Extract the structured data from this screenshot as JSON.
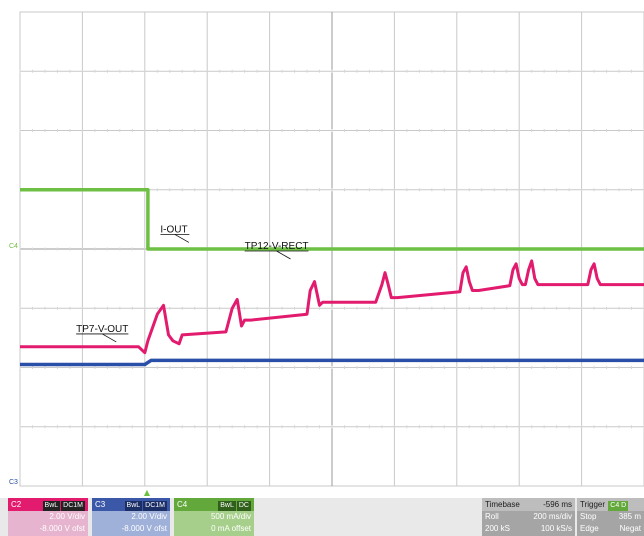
{
  "chart_data": {
    "type": "line",
    "title": "",
    "x_divisions": 10,
    "y_divisions": 8,
    "grid": true,
    "colors": {
      "background": "#ffffff",
      "grid": "#c9c9c9",
      "grid_center": "#9a9a9a",
      "ch2": "#e21b6f",
      "ch3": "#2a4fa8",
      "ch4": "#6dc043"
    },
    "series": [
      {
        "name": "I-OUT",
        "channel": "C4",
        "color": "#6dc043",
        "x": [
          0,
          2.05,
          2.05,
          10
        ],
        "y": [
          1.0,
          1.0,
          0.0,
          0.0
        ]
      },
      {
        "name": "TP12-V-RECT",
        "channel": "C2",
        "color": "#e21b6f",
        "x": [
          0,
          1.9,
          2.0,
          2.05,
          2.2,
          2.3,
          2.38,
          2.45,
          2.55,
          2.6,
          3.3,
          3.4,
          3.48,
          3.55,
          3.6,
          3.7,
          4.6,
          4.65,
          4.72,
          4.8,
          4.85,
          4.9,
          5.7,
          5.8,
          5.85,
          5.9,
          5.95,
          6.05,
          7.05,
          7.1,
          7.15,
          7.2,
          7.25,
          7.35,
          7.85,
          7.9,
          7.95,
          8.0,
          8.05,
          8.1,
          8.15,
          8.2,
          8.25,
          8.3,
          9.1,
          9.15,
          9.2,
          9.25,
          9.3,
          10
        ],
        "y": [
          -1.65,
          -1.65,
          -1.75,
          -1.55,
          -1.1,
          -0.95,
          -1.45,
          -1.55,
          -1.6,
          -1.45,
          -1.4,
          -1.0,
          -0.85,
          -1.3,
          -1.2,
          -1.2,
          -1.1,
          -0.7,
          -0.55,
          -0.95,
          -0.9,
          -0.9,
          -0.9,
          -0.6,
          -0.4,
          -0.6,
          -0.82,
          -0.82,
          -0.72,
          -0.4,
          -0.3,
          -0.55,
          -0.7,
          -0.7,
          -0.62,
          -0.35,
          -0.25,
          -0.5,
          -0.6,
          -0.6,
          -0.35,
          -0.2,
          -0.5,
          -0.6,
          -0.6,
          -0.35,
          -0.25,
          -0.5,
          -0.6,
          -0.6
        ]
      },
      {
        "name": "TP7-V-OUT",
        "channel": "C3",
        "color": "#2a4fa8",
        "x": [
          0,
          2.0,
          2.1,
          10
        ],
        "y": [
          -1.95,
          -1.95,
          -1.88,
          -1.88
        ]
      }
    ],
    "annotations": [
      {
        "text": "I-OUT",
        "x": 2.25,
        "y": 0.28,
        "series": "I-OUT"
      },
      {
        "text": "TP12-V-RECT",
        "x": 3.6,
        "y": 0.0,
        "series": "TP12-V-RECT"
      },
      {
        "text": "TP7-V-OUT",
        "x": 0.9,
        "y": -1.4,
        "series": "TP7-V-OUT"
      }
    ],
    "marker_labels": {
      "c4": "C4",
      "c3": "C3",
      "trigger": "▲"
    }
  },
  "channels": [
    {
      "id": "C2",
      "tag1": "BwL",
      "tag2": "DC1M",
      "vdiv": "2.00 V/div",
      "offset": "-8.000 V ofst"
    },
    {
      "id": "C3",
      "tag1": "BwL",
      "tag2": "DC1M",
      "vdiv": "2.00 V/div",
      "offset": "-8.000 V ofst"
    },
    {
      "id": "C4",
      "tag1": "BwL",
      "tag2": "DC",
      "vdiv": "500 mA/div",
      "offset": "0 mA offset"
    }
  ],
  "timebase": {
    "label": "Timebase",
    "value": "-596 ms",
    "mode": "Roll",
    "rate_div": "200 ms/div",
    "samples": "200 kS",
    "sample_rate": "100 kS/s"
  },
  "trigger": {
    "label": "Trigger",
    "tag": "C4 D",
    "state": "Stop",
    "level": "385 m",
    "type": "Edge",
    "slope": "Negat"
  }
}
